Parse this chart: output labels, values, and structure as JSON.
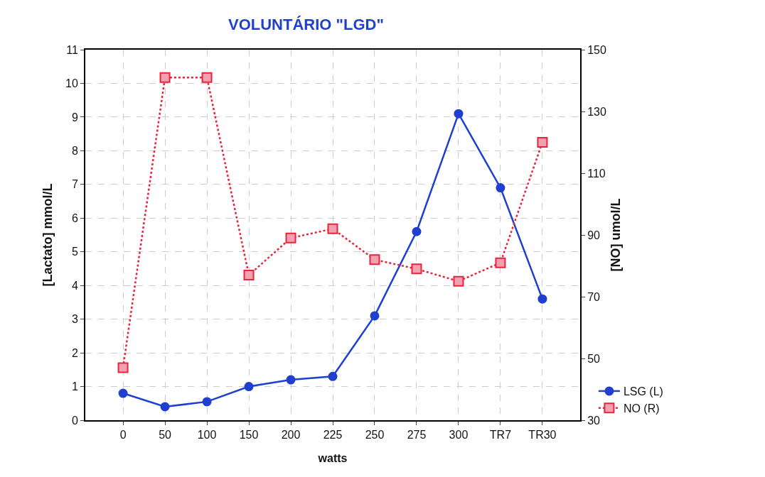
{
  "chart_data": {
    "type": "line",
    "title": "VOLUNTÁRIO \"LGD\"",
    "xlabel": "watts",
    "ylabel": "[Lactato] mmol/L",
    "y2label": "[NO] umol/L",
    "categories": [
      "0",
      "50",
      "100",
      "150",
      "200",
      "225",
      "250",
      "275",
      "300",
      "TR7",
      "TR30"
    ],
    "series": [
      {
        "name": "LSG (L)",
        "color": "#1f3fd0",
        "values": [
          0.8,
          0.4,
          0.55,
          1.0,
          1.2,
          1.3,
          3.1,
          5.6,
          9.1,
          6.9,
          3.6
        ],
        "marker": "circle",
        "line_style": "solid"
      },
      {
        "name": "NO (R)",
        "color": "#e8243c",
        "values": [
          47,
          141,
          141,
          77,
          89,
          92,
          82,
          79,
          75,
          81,
          120
        ],
        "axis": "y2",
        "marker": "square",
        "line_style": "dotted"
      }
    ],
    "ylim": [
      0,
      11
    ],
    "yticks": [
      0,
      1,
      2,
      3,
      4,
      5,
      6,
      7,
      8,
      9,
      10,
      11
    ],
    "y2lim": [
      30,
      150
    ],
    "y2ticks": [
      30,
      50,
      70,
      90,
      110,
      130,
      150
    ],
    "grid": true,
    "legend": "bottom right"
  }
}
